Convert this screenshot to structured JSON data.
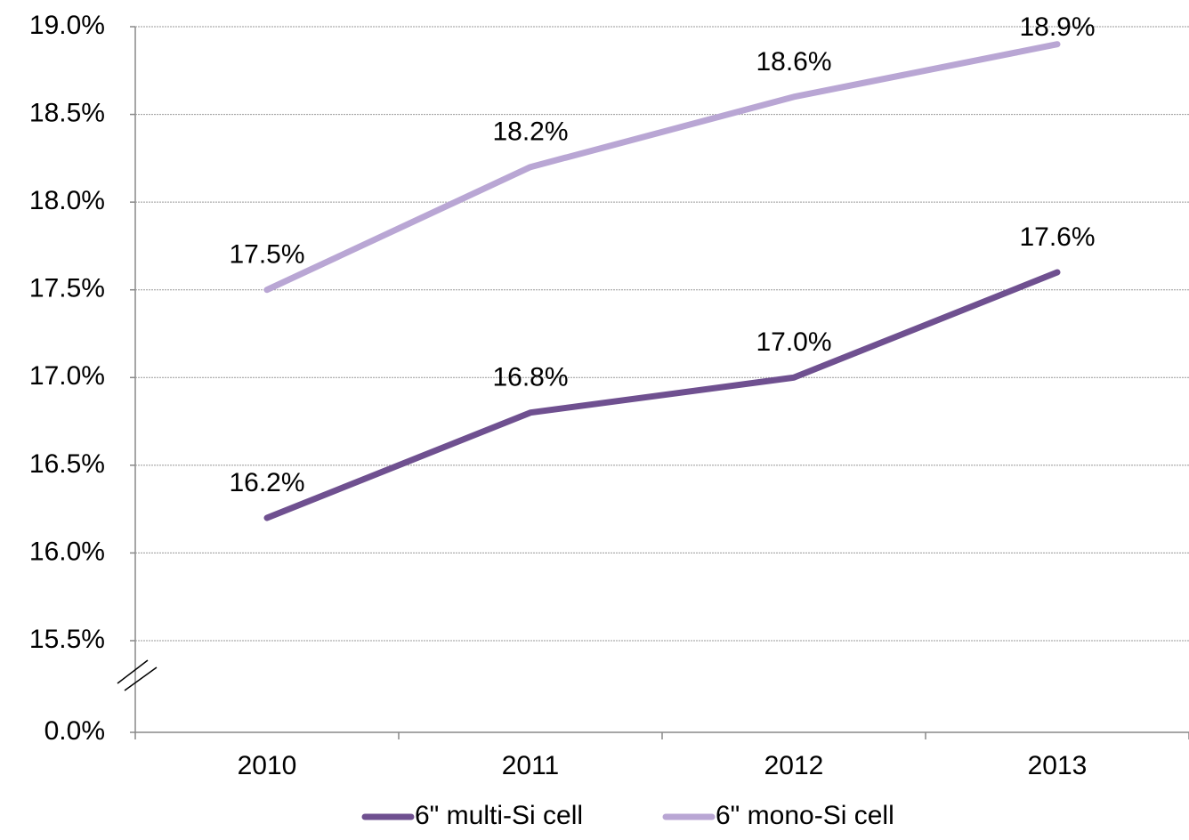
{
  "chart_data": {
    "type": "line",
    "categories": [
      "2010",
      "2011",
      "2012",
      "2013"
    ],
    "series": [
      {
        "name": "6\" multi-Si cell",
        "color": "#6f5090",
        "values": [
          16.2,
          16.8,
          17.0,
          17.6
        ],
        "value_labels": [
          "16.2%",
          "16.8%",
          "17.0%",
          "17.6%"
        ]
      },
      {
        "name": "6\" mono-Si cell",
        "color": "#b9a6d4",
        "values": [
          17.5,
          18.2,
          18.6,
          18.9
        ],
        "value_labels": [
          "17.5%",
          "18.2%",
          "18.6%",
          "18.9%"
        ]
      }
    ],
    "ylim": [
      0,
      19.0
    ],
    "y_break": [
      0,
      15.5
    ],
    "yticks": [
      {
        "value": 0,
        "label": "0.0%"
      },
      {
        "value": 15.5,
        "label": "15.5%"
      },
      {
        "value": 16.0,
        "label": "16.0%"
      },
      {
        "value": 16.5,
        "label": "16.5%"
      },
      {
        "value": 17.0,
        "label": "17.0%"
      },
      {
        "value": 17.5,
        "label": "17.5%"
      },
      {
        "value": 18.0,
        "label": "18.0%"
      },
      {
        "value": 18.5,
        "label": "18.5%"
      },
      {
        "value": 19.0,
        "label": "19.0%"
      }
    ],
    "grid": true,
    "legend": "bottom"
  }
}
